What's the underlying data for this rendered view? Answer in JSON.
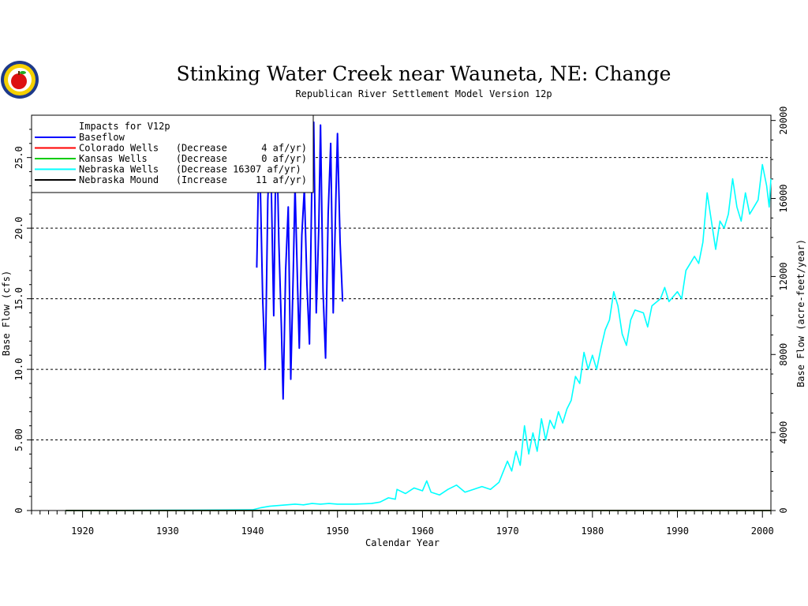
{
  "colors": {
    "background": "#ffffff",
    "axis": "#000000",
    "baseflow": "#0000ff",
    "colorado": "#ff0000",
    "kansas": "#00cc00",
    "nebraska_wells": "#00ffff",
    "nebraska_mound": "#000000"
  },
  "logo": {
    "icon": "apple-seal-icon",
    "name": "Nebraska Department of Natural Resources seal"
  },
  "chart_data": {
    "type": "line",
    "title": "Stinking Water Creek near Wauneta, NE: Change",
    "subtitle": "Republican River Settlement Model Version 12p",
    "xlabel": "Calendar Year",
    "ylabel": "Base Flow (cfs)",
    "y2label": "Base Flow (acre-feet/year)",
    "xlim": [
      1914,
      2001
    ],
    "ylim": [
      0,
      28
    ],
    "y2lim": [
      0,
      20270
    ],
    "x_ticks": [
      1920,
      1930,
      1940,
      1950,
      1960,
      1970,
      1980,
      1990,
      2000
    ],
    "y_ticks": [
      0,
      5,
      10,
      15,
      20,
      25
    ],
    "y_tick_labels": [
      "0",
      "5.00",
      "10.0",
      "15.0",
      "20.0",
      "25.0"
    ],
    "y2_ticks": [
      0,
      4000,
      8000,
      12000,
      16000,
      20000
    ],
    "y2_tick_labels": [
      "0",
      "4000",
      "8000",
      "12000",
      "16000",
      "20000"
    ],
    "grid": "dashed at y = 5, 10, 15, 20, 25",
    "legend": {
      "placement": "top-left",
      "header": "Impacts for V12p",
      "entries": [
        {
          "label": "Baseflow",
          "color": "#0000ff"
        },
        {
          "label": "Colorado Wells   (Decrease      4 af/yr)",
          "color": "#ff0000"
        },
        {
          "label": "Kansas Wells     (Decrease      0 af/yr)",
          "color": "#00cc00"
        },
        {
          "label": "Nebraska Wells   (Decrease 16307 af/yr)",
          "color": "#00ffff"
        },
        {
          "label": "Nebraska Mound   (Increase     11 af/yr)",
          "color": "#000000"
        }
      ]
    },
    "series": [
      {
        "name": "Baseflow",
        "color": "#0000ff",
        "points": [
          [
            1940.5,
            17.2
          ],
          [
            1940.8,
            26.5
          ],
          [
            1941.2,
            15.0
          ],
          [
            1941.5,
            10.0
          ],
          [
            1941.8,
            22.0
          ],
          [
            1942.1,
            26.5
          ],
          [
            1942.5,
            13.8
          ],
          [
            1942.8,
            27.8
          ],
          [
            1943.1,
            19.0
          ],
          [
            1943.4,
            13.0
          ],
          [
            1943.6,
            7.9
          ],
          [
            1943.9,
            17.0
          ],
          [
            1944.2,
            21.5
          ],
          [
            1944.5,
            9.3
          ],
          [
            1944.8,
            17.0
          ],
          [
            1945.0,
            23.0
          ],
          [
            1945.3,
            16.0
          ],
          [
            1945.5,
            11.5
          ],
          [
            1945.8,
            19.5
          ],
          [
            1946.1,
            22.8
          ],
          [
            1946.4,
            16.0
          ],
          [
            1946.7,
            11.8
          ],
          [
            1947.0,
            24.0
          ],
          [
            1947.2,
            27.5
          ],
          [
            1947.5,
            14.0
          ],
          [
            1947.8,
            20.0
          ],
          [
            1948.0,
            27.3
          ],
          [
            1948.3,
            15.5
          ],
          [
            1948.6,
            10.8
          ],
          [
            1948.9,
            21.0
          ],
          [
            1949.2,
            26.0
          ],
          [
            1949.5,
            14.0
          ],
          [
            1949.8,
            22.0
          ],
          [
            1950.0,
            26.7
          ],
          [
            1950.3,
            19.0
          ],
          [
            1950.6,
            14.8
          ]
        ]
      },
      {
        "name": "Colorado Wells",
        "color": "#ff0000",
        "points": [
          [
            1918,
            0
          ],
          [
            2001,
            0
          ]
        ]
      },
      {
        "name": "Kansas Wells",
        "color": "#00cc00",
        "points": [
          [
            1918,
            0
          ],
          [
            2001,
            0
          ]
        ]
      },
      {
        "name": "Nebraska Wells",
        "color": "#00ffff",
        "points": [
          [
            1918,
            0
          ],
          [
            1930,
            0.02
          ],
          [
            1940,
            0.05
          ],
          [
            1941,
            0.2
          ],
          [
            1942,
            0.3
          ],
          [
            1943,
            0.35
          ],
          [
            1944,
            0.4
          ],
          [
            1945,
            0.45
          ],
          [
            1946,
            0.4
          ],
          [
            1947,
            0.5
          ],
          [
            1948,
            0.45
          ],
          [
            1949,
            0.5
          ],
          [
            1950,
            0.45
          ],
          [
            1952,
            0.45
          ],
          [
            1954,
            0.5
          ],
          [
            1955,
            0.6
          ],
          [
            1956,
            0.9
          ],
          [
            1956.8,
            0.8
          ],
          [
            1957,
            1.5
          ],
          [
            1958,
            1.2
          ],
          [
            1959,
            1.6
          ],
          [
            1960,
            1.4
          ],
          [
            1960.5,
            2.1
          ],
          [
            1961,
            1.3
          ],
          [
            1962,
            1.1
          ],
          [
            1963,
            1.5
          ],
          [
            1964,
            1.8
          ],
          [
            1965,
            1.3
          ],
          [
            1966,
            1.5
          ],
          [
            1967,
            1.7
          ],
          [
            1968,
            1.5
          ],
          [
            1969,
            2.0
          ],
          [
            1970,
            3.5
          ],
          [
            1970.5,
            2.8
          ],
          [
            1971,
            4.2
          ],
          [
            1971.5,
            3.2
          ],
          [
            1972,
            6.0
          ],
          [
            1972.5,
            4.0
          ],
          [
            1973,
            5.5
          ],
          [
            1973.5,
            4.2
          ],
          [
            1974,
            6.5
          ],
          [
            1974.5,
            5.0
          ],
          [
            1975,
            6.4
          ],
          [
            1975.5,
            5.8
          ],
          [
            1976,
            7.0
          ],
          [
            1976.5,
            6.2
          ],
          [
            1977,
            7.2
          ],
          [
            1977.5,
            7.8
          ],
          [
            1978,
            9.5
          ],
          [
            1978.5,
            9.0
          ],
          [
            1979,
            11.2
          ],
          [
            1979.5,
            10.0
          ],
          [
            1980,
            11.0
          ],
          [
            1980.5,
            10.0
          ],
          [
            1981,
            11.5
          ],
          [
            1981.5,
            12.8
          ],
          [
            1982,
            13.5
          ],
          [
            1982.5,
            15.5
          ],
          [
            1983,
            14.5
          ],
          [
            1983.5,
            12.5
          ],
          [
            1984,
            11.7
          ],
          [
            1984.5,
            13.5
          ],
          [
            1985,
            14.2
          ],
          [
            1986,
            14.0
          ],
          [
            1986.5,
            13.0
          ],
          [
            1987,
            14.5
          ],
          [
            1988,
            15.0
          ],
          [
            1988.5,
            15.8
          ],
          [
            1989,
            14.8
          ],
          [
            1990,
            15.5
          ],
          [
            1990.5,
            15.0
          ],
          [
            1991,
            17.0
          ],
          [
            1991.5,
            17.5
          ],
          [
            1992,
            18.0
          ],
          [
            1992.5,
            17.5
          ],
          [
            1993,
            19.0
          ],
          [
            1993.5,
            22.5
          ],
          [
            1994,
            20.5
          ],
          [
            1994.5,
            18.5
          ],
          [
            1995,
            20.5
          ],
          [
            1995.5,
            20.0
          ],
          [
            1996,
            21.0
          ],
          [
            1996.5,
            23.5
          ],
          [
            1997,
            21.5
          ],
          [
            1997.5,
            20.5
          ],
          [
            1998,
            22.5
          ],
          [
            1998.5,
            21.0
          ],
          [
            1999,
            21.5
          ],
          [
            1999.5,
            22.0
          ],
          [
            2000,
            24.5
          ],
          [
            2000.5,
            23.0
          ],
          [
            2000.8,
            21.5
          ],
          [
            2001,
            23.5
          ]
        ]
      },
      {
        "name": "Nebraska Mound",
        "color": "#000000",
        "points": [
          [
            1918,
            0
          ],
          [
            2001,
            0
          ]
        ]
      }
    ]
  }
}
